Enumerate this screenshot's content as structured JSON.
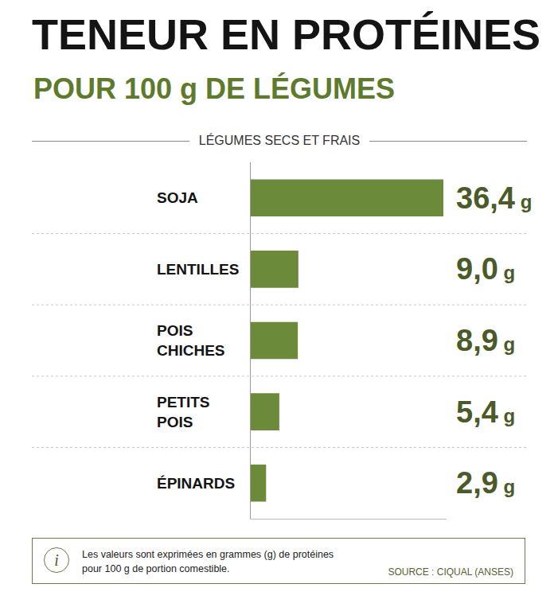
{
  "chart_data": {
    "type": "bar",
    "orientation": "horizontal",
    "title": "TENEUR EN PROTÉINES",
    "subtitle": "POUR 100 g DE LÉGUMES",
    "section": "LÉGUMES SECS ET FRAIS",
    "categories": [
      "SOJA",
      "LENTILLES",
      "POIS CHICHES",
      "PETITS POIS",
      "ÉPINARDS"
    ],
    "values": [
      36.4,
      9.0,
      8.9,
      5.4,
      2.9
    ],
    "value_labels": [
      "36,4 g",
      "9,0 g",
      "8,9 g",
      "5,4 g",
      "2,9 g"
    ],
    "data_labels": true,
    "color": "#6b8a3a",
    "xlim": [
      0,
      37
    ],
    "xticks": [],
    "tick_labels": false,
    "grid": false,
    "note_icon": "i",
    "note": "Les valeurs sont exprimées en grammes (g) de protéines pour 100 g de portion comestible.",
    "source": "SOURCE : CIQUAL (ANSES)"
  }
}
